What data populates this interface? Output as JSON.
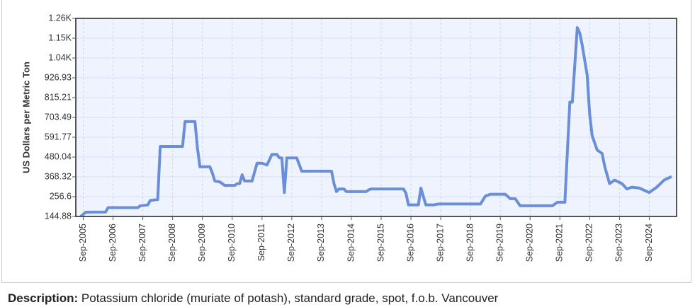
{
  "chart_data": {
    "type": "line",
    "y_label": "US Dollars per Metric Ton",
    "x": [
      "2005-08",
      "2005-10",
      "2006-06",
      "2006-07",
      "2007-07",
      "2007-08",
      "2007-11",
      "2007-12",
      "2008-03",
      "2008-04",
      "2009-01",
      "2009-02",
      "2009-06",
      "2009-07",
      "2009-08",
      "2009-12",
      "2010-01",
      "2010-02",
      "2010-04",
      "2010-06",
      "2010-10",
      "2010-11",
      "2010-12",
      "2011-01",
      "2011-02",
      "2011-05",
      "2011-07",
      "2011-09",
      "2011-11",
      "2012-01",
      "2012-03",
      "2012-04",
      "2012-05",
      "2012-06",
      "2012-07",
      "2012-11",
      "2013-01",
      "2014-01",
      "2014-02",
      "2014-03",
      "2014-04",
      "2014-06",
      "2014-07",
      "2015-03",
      "2015-04",
      "2015-05",
      "2016-06",
      "2016-07",
      "2016-08",
      "2016-12",
      "2017-01",
      "2017-03",
      "2017-06",
      "2017-08",
      "2019-01",
      "2019-03",
      "2019-05",
      "2019-11",
      "2020-01",
      "2020-03",
      "2020-05",
      "2021-06",
      "2021-08",
      "2021-11",
      "2022-01",
      "2022-02",
      "2022-03",
      "2022-04",
      "2022-05",
      "2022-06",
      "2022-08",
      "2022-09",
      "2022-10",
      "2022-12",
      "2023-02",
      "2023-03",
      "2023-05",
      "2023-07",
      "2023-10",
      "2023-12",
      "2024-02",
      "2024-05",
      "2024-09",
      "2024-12",
      "2025-03",
      "2025-06"
    ],
    "series": [
      {
        "color": "#6a8fd8",
        "values": [
          145,
          169,
          170,
          195,
          195,
          205,
          210,
          235,
          240,
          540,
          540,
          680,
          680,
          530,
          425,
          425,
          390,
          345,
          340,
          320,
          320,
          330,
          330,
          380,
          345,
          345,
          445,
          445,
          435,
          495,
          495,
          475,
          475,
          280,
          475,
          475,
          400,
          400,
          330,
          285,
          300,
          300,
          285,
          285,
          295,
          300,
          300,
          275,
          210,
          210,
          305,
          210,
          210,
          215,
          215,
          260,
          270,
          270,
          245,
          245,
          205,
          205,
          225,
          225,
          790,
          790,
          1000,
          1210,
          1180,
          1110,
          940,
          720,
          600,
          520,
          500,
          430,
          330,
          350,
          330,
          300,
          310,
          305,
          280,
          310,
          350,
          370
        ]
      }
    ],
    "xlim": [
      "2005-06",
      "2025-08"
    ],
    "xticks": [
      {
        "value": "2005-09",
        "label": "Sep-2005"
      },
      {
        "value": "2006-09",
        "label": "Sep-2006"
      },
      {
        "value": "2007-09",
        "label": "Sep-2007"
      },
      {
        "value": "2008-09",
        "label": "Sep-2008"
      },
      {
        "value": "2009-09",
        "label": "Sep-2009"
      },
      {
        "value": "2010-09",
        "label": "Sep-2010"
      },
      {
        "value": "2011-09",
        "label": "Sep-2011"
      },
      {
        "value": "2012-09",
        "label": "Sep-2012"
      },
      {
        "value": "2013-09",
        "label": "Sep-2013"
      },
      {
        "value": "2014-09",
        "label": "Sep-2014"
      },
      {
        "value": "2015-09",
        "label": "Sep-2015"
      },
      {
        "value": "2016-09",
        "label": "Sep-2016"
      },
      {
        "value": "2017-09",
        "label": "Sep-2017"
      },
      {
        "value": "2018-09",
        "label": "Sep-2018"
      },
      {
        "value": "2019-09",
        "label": "Sep-2019"
      },
      {
        "value": "2020-09",
        "label": "Sep-2020"
      },
      {
        "value": "2021-09",
        "label": "Sep-2021"
      },
      {
        "value": "2022-09",
        "label": "Sep-2022"
      },
      {
        "value": "2023-09",
        "label": "Sep-2023"
      },
      {
        "value": "2024-09",
        "label": "Sep-2024"
      }
    ],
    "ylim": [
      144.88,
      1262.09
    ],
    "yticks": [
      144.88,
      256.6,
      368.32,
      480.04,
      591.77,
      703.49,
      815.21,
      926.93,
      {
        "value": 1038.65,
        "label": "1.04K"
      },
      {
        "value": 1150.37,
        "label": "1.15K"
      },
      {
        "value": 1262.09,
        "label": "1.26K"
      }
    ],
    "grid": true
  },
  "description_label": "Description:",
  "description": "Potassium chloride (muriate of potash), standard grade, spot, f.o.b. Vancouver"
}
